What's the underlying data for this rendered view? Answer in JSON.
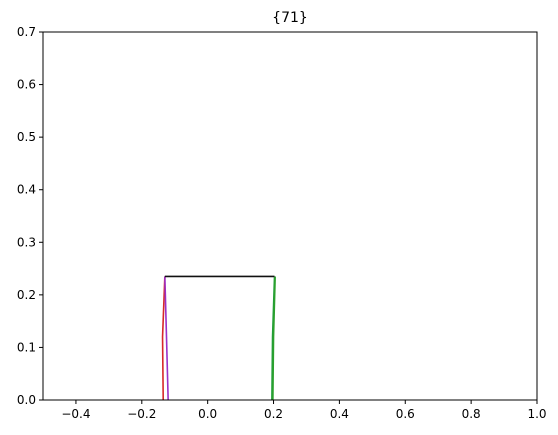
{
  "chart_data": {
    "type": "line",
    "title": "{71}",
    "xlabel": "",
    "ylabel": "",
    "xlim": [
      -0.5,
      1.0
    ],
    "ylim": [
      0.0,
      0.7
    ],
    "x_ticks": [
      -0.4,
      -0.2,
      0.0,
      0.2,
      0.4,
      0.6,
      0.8,
      1.0
    ],
    "x_tick_labels": [
      "−0.4",
      "−0.2",
      "0.0",
      "0.2",
      "0.4",
      "0.6",
      "0.8",
      "1.0"
    ],
    "y_ticks": [
      0.0,
      0.1,
      0.2,
      0.3,
      0.4,
      0.5,
      0.6,
      0.7
    ],
    "y_tick_labels": [
      "0.0",
      "0.1",
      "0.2",
      "0.3",
      "0.4",
      "0.5",
      "0.6",
      "0.7"
    ],
    "grid": false,
    "legend": "none",
    "series": [
      {
        "color": "#d62728",
        "x": [
          -0.135,
          -0.137,
          -0.13
        ],
        "y": [
          0.0,
          0.12,
          0.235
        ]
      },
      {
        "color": "#9b30c8",
        "x": [
          -0.12,
          -0.125,
          -0.13
        ],
        "y": [
          0.0,
          0.12,
          0.235
        ]
      },
      {
        "color": "#1f9e3a",
        "x": [
          0.195,
          0.197,
          0.203
        ],
        "y": [
          0.0,
          0.12,
          0.235
        ]
      },
      {
        "color": "#2ca02c",
        "x": [
          0.198,
          0.2,
          0.205
        ],
        "y": [
          0.0,
          0.12,
          0.235
        ]
      },
      {
        "color": "#111111",
        "x": [
          -0.13,
          0.203
        ],
        "y": [
          0.235,
          0.235
        ]
      }
    ]
  }
}
